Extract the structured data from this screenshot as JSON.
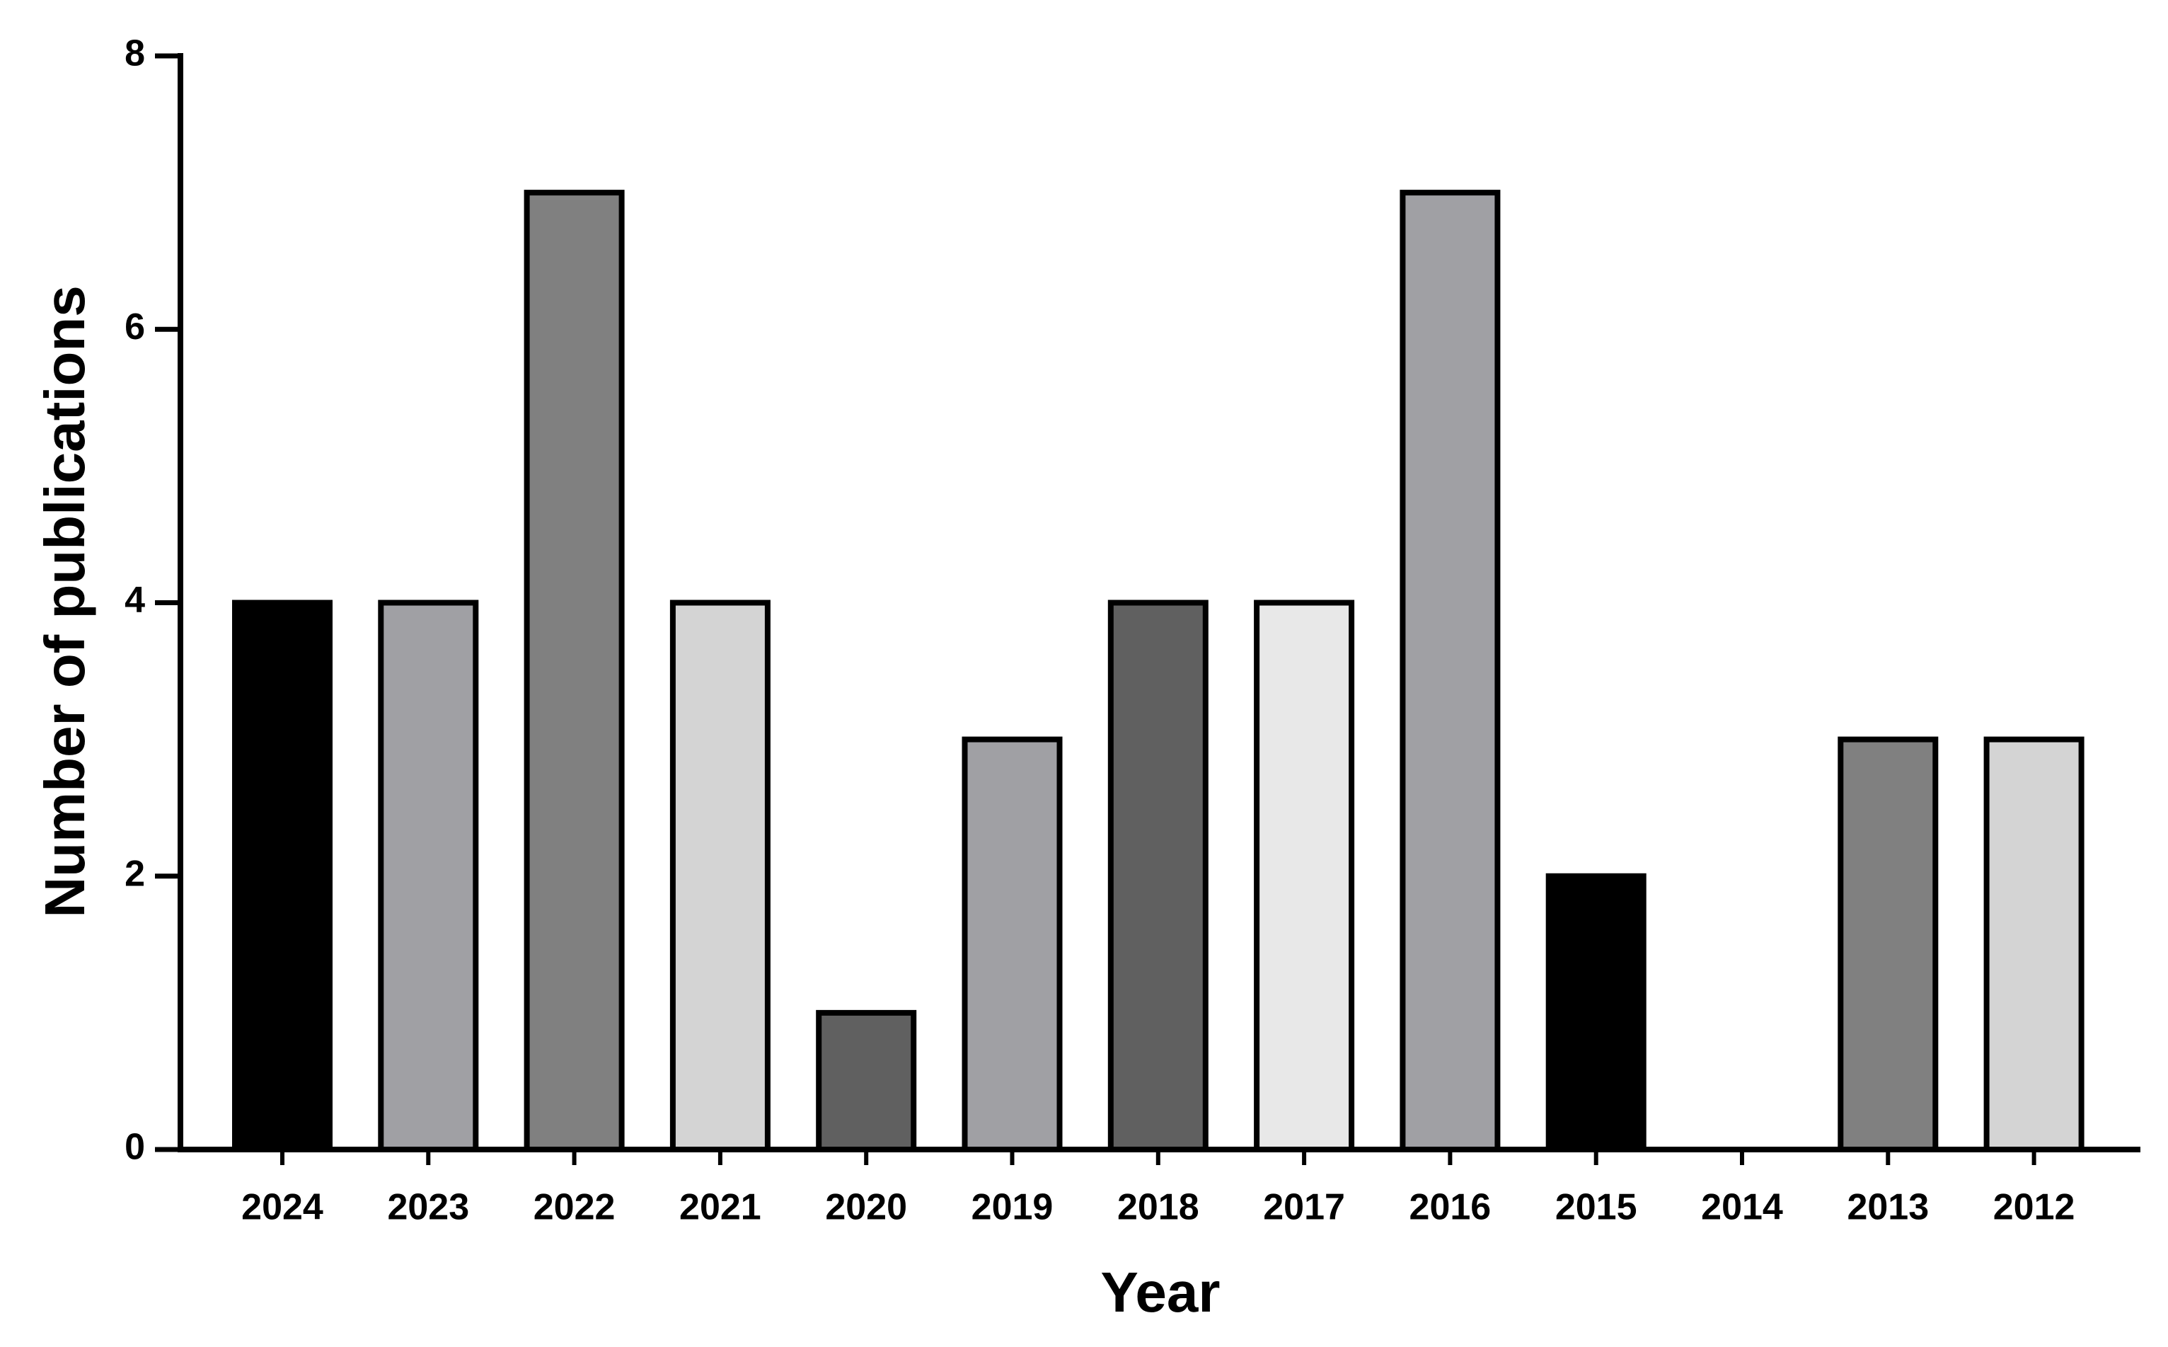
{
  "chart_data": {
    "type": "bar",
    "x_label": "Year",
    "y_label": "Number of publications",
    "categories": [
      "2024",
      "2023",
      "2022",
      "2021",
      "2020",
      "2019",
      "2018",
      "2017",
      "2016",
      "2015",
      "2014",
      "2013",
      "2012"
    ],
    "values": [
      4,
      4,
      7,
      4,
      1,
      3,
      4,
      4,
      7,
      2,
      0,
      3,
      3
    ],
    "colors": [
      "#000000",
      "#a0a0a4",
      "#808080",
      "#d4d4d4",
      "#606060",
      "#a0a0a4",
      "#606060",
      "#e8e8e8",
      "#a0a0a4",
      "#000000",
      null,
      "#808080",
      "#d4d4d4"
    ],
    "ylim": [
      0,
      8
    ],
    "yticks": [
      0,
      2,
      4,
      6,
      8
    ],
    "grid": false
  }
}
